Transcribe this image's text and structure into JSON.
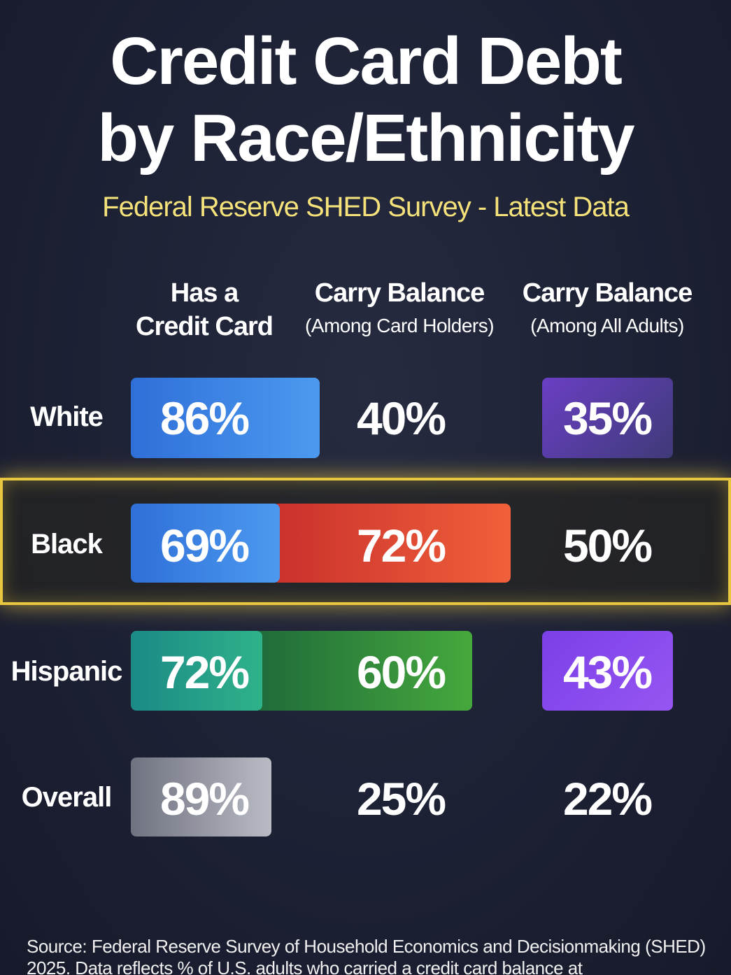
{
  "header": {
    "title_lines": [
      "Credit Card Debt",
      "by Race/Ethnicity"
    ],
    "subtitle": "Federal Reserve SHED Survey - Latest Data"
  },
  "table": {
    "columns": [
      {
        "title_lines": [
          "Has a",
          "Credit Card"
        ]
      },
      {
        "title_lines": [
          "Carry Balance",
          "(Among Card Holders)"
        ]
      },
      {
        "title_lines": [
          "Carry Balance",
          "(Among All Adults)"
        ]
      }
    ],
    "rows": [
      {
        "label": "White",
        "cells": [
          "86%",
          "40%",
          "35%"
        ]
      },
      {
        "label": "Black",
        "cells": [
          "69%",
          "72%",
          "50%"
        ]
      },
      {
        "label": "Hispanic",
        "cells": [
          "72%",
          "60%",
          "43%"
        ]
      },
      {
        "label": "Overall",
        "cells": [
          "89%",
          "25%",
          "22%"
        ]
      }
    ]
  },
  "source": "Source: Federal Reserve Survey of Household Economics and Decisionmaking (SHED) 2025. Data reflects % of U.S. adults who carried a credit card balance at"
}
